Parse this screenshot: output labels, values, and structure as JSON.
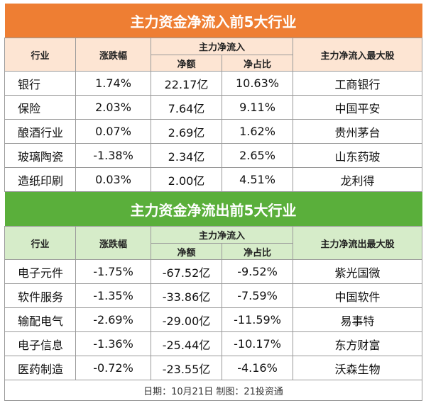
{
  "inflow": {
    "title": "主力资金净流入前5大行业",
    "headers": {
      "industry": "行业",
      "change": "涨跌幅",
      "main_flow": "主力净流入",
      "net_amount": "净额",
      "net_ratio": "净占比",
      "top_stock": "主力净流入最大股"
    },
    "rows": [
      {
        "industry": "银行",
        "change": "1.74%",
        "net_amount": "22.17亿",
        "net_ratio": "10.63%",
        "top_stock": "工商银行"
      },
      {
        "industry": "保险",
        "change": "2.03%",
        "net_amount": "7.64亿",
        "net_ratio": "9.11%",
        "top_stock": "中国平安"
      },
      {
        "industry": "酿酒行业",
        "change": "0.07%",
        "net_amount": "2.69亿",
        "net_ratio": "1.62%",
        "top_stock": "贵州茅台"
      },
      {
        "industry": "玻璃陶瓷",
        "change": "-1.38%",
        "net_amount": "2.34亿",
        "net_ratio": "2.65%",
        "top_stock": "山东药玻"
      },
      {
        "industry": "造纸印刷",
        "change": "0.03%",
        "net_amount": "2.00亿",
        "net_ratio": "4.51%",
        "top_stock": "龙利得"
      }
    ]
  },
  "outflow": {
    "title": "主力资金净流出前5大行业",
    "headers": {
      "industry": "行业",
      "change": "涨跌幅",
      "main_flow": "主力净流入",
      "net_amount": "净额",
      "net_ratio": "净占比",
      "top_stock": "主力净流出最大股"
    },
    "rows": [
      {
        "industry": "电子元件",
        "change": "-1.75%",
        "net_amount": "-67.52亿",
        "net_ratio": "-9.52%",
        "top_stock": "紫光国微"
      },
      {
        "industry": "软件服务",
        "change": "-1.35%",
        "net_amount": "-33.86亿",
        "net_ratio": "-7.59%",
        "top_stock": "中国软件"
      },
      {
        "industry": "输配电气",
        "change": "-2.69%",
        "net_amount": "-29.00亿",
        "net_ratio": "-11.59%",
        "top_stock": "易事特"
      },
      {
        "industry": "电子信息",
        "change": "-1.36%",
        "net_amount": "-25.44亿",
        "net_ratio": "-10.17%",
        "top_stock": "东方财富"
      },
      {
        "industry": "医药制造",
        "change": "-0.72%",
        "net_amount": "-23.55亿",
        "net_ratio": "-4.16%",
        "top_stock": "沃森生物"
      }
    ]
  },
  "footer": "日期：10月21日 制图：21投资通",
  "colors": {
    "inflow_title": "#ee7e33",
    "inflow_header": "#fde5d3",
    "outflow_title": "#5aaf3b",
    "outflow_header": "#d6ecc9"
  }
}
